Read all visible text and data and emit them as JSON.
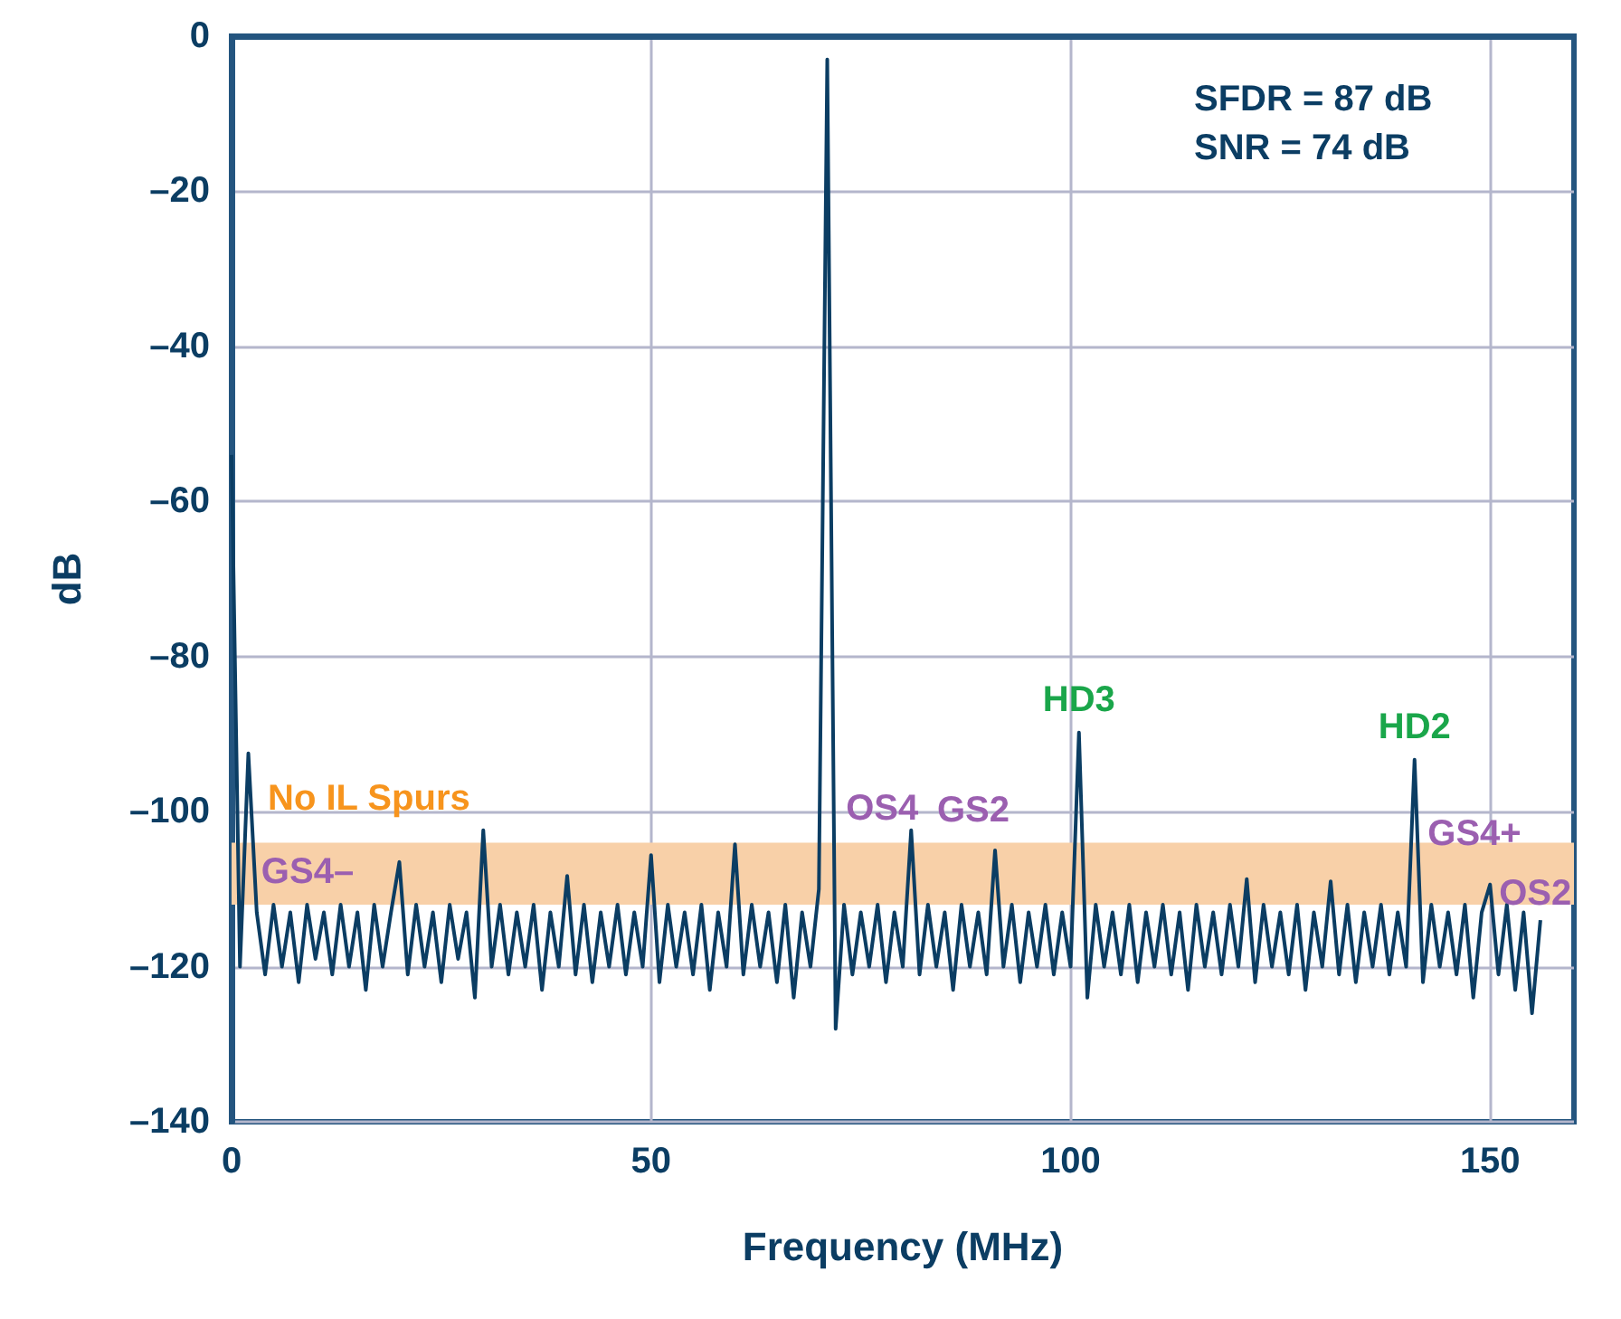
{
  "chart_data": {
    "type": "line",
    "xlabel": "Frequency (MHz)",
    "ylabel": "dB",
    "xlim": [
      0,
      160
    ],
    "xticks": [
      0,
      50,
      100,
      150
    ],
    "ylim": [
      -140,
      0
    ],
    "yticks": [
      {
        "value": -140,
        "label": "–140"
      },
      {
        "value": -120,
        "label": "–120"
      },
      {
        "value": -100,
        "label": "–100"
      },
      {
        "value": -80,
        "label": "–80"
      },
      {
        "value": -60,
        "label": "–60"
      },
      {
        "value": -40,
        "label": "–40"
      },
      {
        "value": -20,
        "label": "–20"
      },
      {
        "value": 0,
        "label": "0"
      }
    ],
    "grid": true,
    "marker": "none",
    "x": [
      0,
      1,
      2,
      3,
      4,
      5,
      6,
      7,
      8,
      9,
      10,
      11,
      12,
      13,
      14,
      15,
      16,
      17,
      18,
      19,
      20,
      21,
      22,
      23,
      24,
      25,
      26,
      27,
      28,
      29,
      30,
      31,
      32,
      33,
      34,
      35,
      36,
      37,
      38,
      39,
      40,
      41,
      42,
      43,
      44,
      45,
      46,
      47,
      48,
      49,
      50,
      51,
      52,
      53,
      54,
      55,
      56,
      57,
      58,
      59,
      60,
      61,
      62,
      63,
      64,
      65,
      66,
      67,
      68,
      69,
      70,
      71,
      72,
      73,
      74,
      75,
      76,
      77,
      78,
      79,
      80,
      81,
      82,
      83,
      84,
      85,
      86,
      87,
      88,
      89,
      90,
      91,
      92,
      93,
      94,
      95,
      96,
      97,
      98,
      99,
      100,
      101,
      102,
      103,
      104,
      105,
      106,
      107,
      108,
      109,
      110,
      111,
      112,
      113,
      114,
      115,
      116,
      117,
      118,
      119,
      120,
      121,
      122,
      123,
      124,
      125,
      126,
      127,
      128,
      129,
      130,
      131,
      132,
      133,
      134,
      135,
      136,
      137,
      138,
      139,
      140,
      141,
      142,
      143,
      144,
      145,
      146,
      147,
      148,
      149,
      150,
      151,
      152,
      153,
      154,
      155,
      156
    ],
    "series": [
      {
        "color": "#0b3d63",
        "values": [
          -54,
          -120,
          -92.5,
          -113,
          -121,
          -112,
          -120,
          -113,
          -122,
          -112,
          -119,
          -113,
          -121,
          -112,
          -120,
          -113,
          -123,
          -112,
          -120,
          -113,
          -106.5,
          -121,
          -112,
          -120,
          -113,
          -122,
          -112,
          -119,
          -113,
          -124,
          -102.4,
          -120,
          -112,
          -121,
          -113,
          -120,
          -112,
          -123,
          -113,
          -120,
          -108.3,
          -121,
          -112,
          -122,
          -113,
          -120,
          -112,
          -121,
          -113,
          -120,
          -105.6,
          -122,
          -112,
          -120,
          -113,
          -121,
          -112,
          -123,
          -113,
          -120,
          -104.2,
          -121,
          -112,
          -120,
          -113,
          -122,
          -112,
          -124,
          -113,
          -120,
          -110,
          -3,
          -128,
          -112,
          -121,
          -113,
          -120,
          -112,
          -122,
          -113,
          -120,
          -102.4,
          -121,
          -112,
          -120,
          -113,
          -123,
          -112,
          -120,
          -113,
          -121,
          -105,
          -120,
          -112,
          -122,
          -113,
          -120,
          -112,
          -121,
          -113,
          -120,
          -89.8,
          -124,
          -112,
          -120,
          -113,
          -121,
          -112,
          -122,
          -113,
          -120,
          -112,
          -121,
          -113,
          -123,
          -112,
          -120,
          -113,
          -121,
          -112,
          -120,
          -108.7,
          -122,
          -112,
          -120,
          -113,
          -121,
          -112,
          -123,
          -113,
          -120,
          -109,
          -121,
          -112,
          -122,
          -113,
          -120,
          -112,
          -121,
          -113,
          -120,
          -93.3,
          -122,
          -112,
          -120,
          -113,
          -121,
          -112,
          -124,
          -113,
          -109.4,
          -121,
          -112,
          -123,
          -113,
          -126,
          -114
        ]
      }
    ],
    "bands": [
      {
        "axis": "y",
        "from": -112,
        "to": -104,
        "label": "No IL Spurs",
        "color": "#f8d0a8"
      }
    ],
    "annotations": [
      "SFDR = 87 dB",
      "SNR = 74 dB",
      "GS4–",
      "GS4+",
      {
        "text": "OS4",
        "x": 81,
        "y": -102.4
      },
      {
        "text": "GS2",
        "x": 91,
        "y": -105
      },
      {
        "text": "HD3",
        "x": 101,
        "y": -89.8
      },
      {
        "text": "HD2",
        "x": 141,
        "y": -93.3
      },
      {
        "text": "OS2",
        "x": 150,
        "y": -109.4
      }
    ]
  }
}
